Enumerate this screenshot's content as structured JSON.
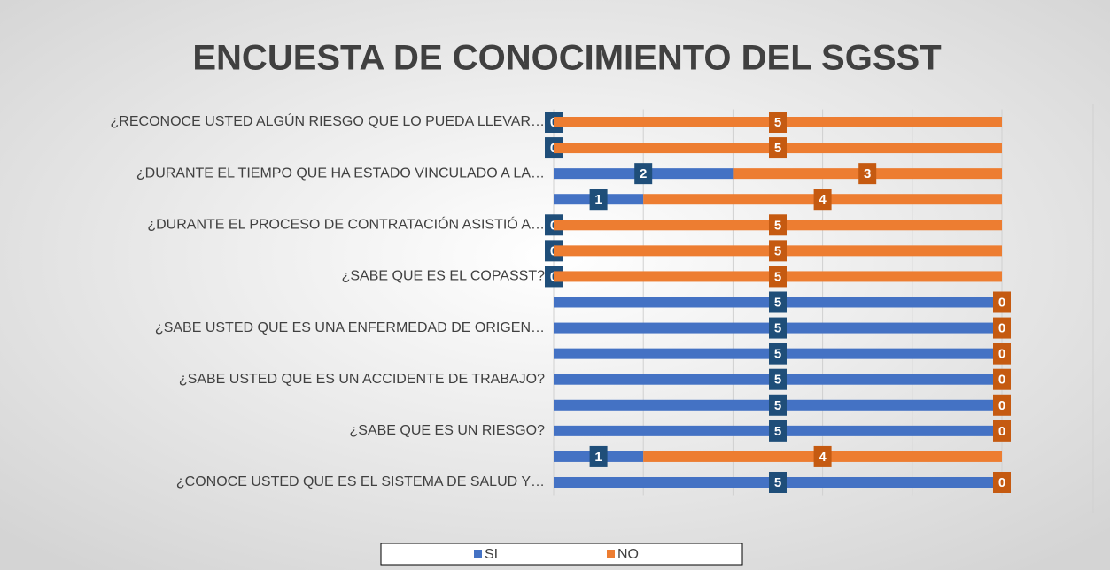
{
  "chart_data": {
    "type": "stacked_barh",
    "title": "ENCUESTA DE CONOCIMIENTO DEL SGSST",
    "categories": [
      "¿RECONOCE USTED ALGÚN RIESGO QUE LO PUEDA LLEVAR…",
      null,
      "¿DURANTE EL TIEMPO QUE HA ESTADO VINCULADO A LA…",
      null,
      "¿DURANTE EL PROCESO DE CONTRATACIÓN ASISTIÓ A…",
      null,
      "¿SABE QUE ES EL COPASST?",
      null,
      "¿SABE USTED QUE ES UNA ENFERMEDAD DE ORIGEN…",
      null,
      "¿SABE USTED QUE ES UN ACCIDENTE DE TRABAJO?",
      null,
      "¿SABE QUE ES UN RIESGO?",
      null,
      "¿CONOCE USTED QUE ES EL SISTEMA DE SALUD Y…"
    ],
    "series": [
      {
        "name": "SI",
        "color": "#4472c4",
        "label_color": "#1f4e79",
        "values": [
          0,
          0,
          2,
          1,
          0,
          0,
          0,
          5,
          5,
          5,
          5,
          5,
          5,
          1,
          5
        ]
      },
      {
        "name": "NO",
        "color": "#ed7d31",
        "label_color": "#c55a11",
        "values": [
          5,
          5,
          3,
          4,
          5,
          5,
          5,
          0,
          0,
          0,
          0,
          0,
          0,
          4,
          0
        ]
      }
    ],
    "xlim": [
      0,
      5
    ],
    "xticks": [
      0,
      1,
      2,
      3,
      4,
      5
    ],
    "grid": true,
    "legend": "bottom"
  }
}
